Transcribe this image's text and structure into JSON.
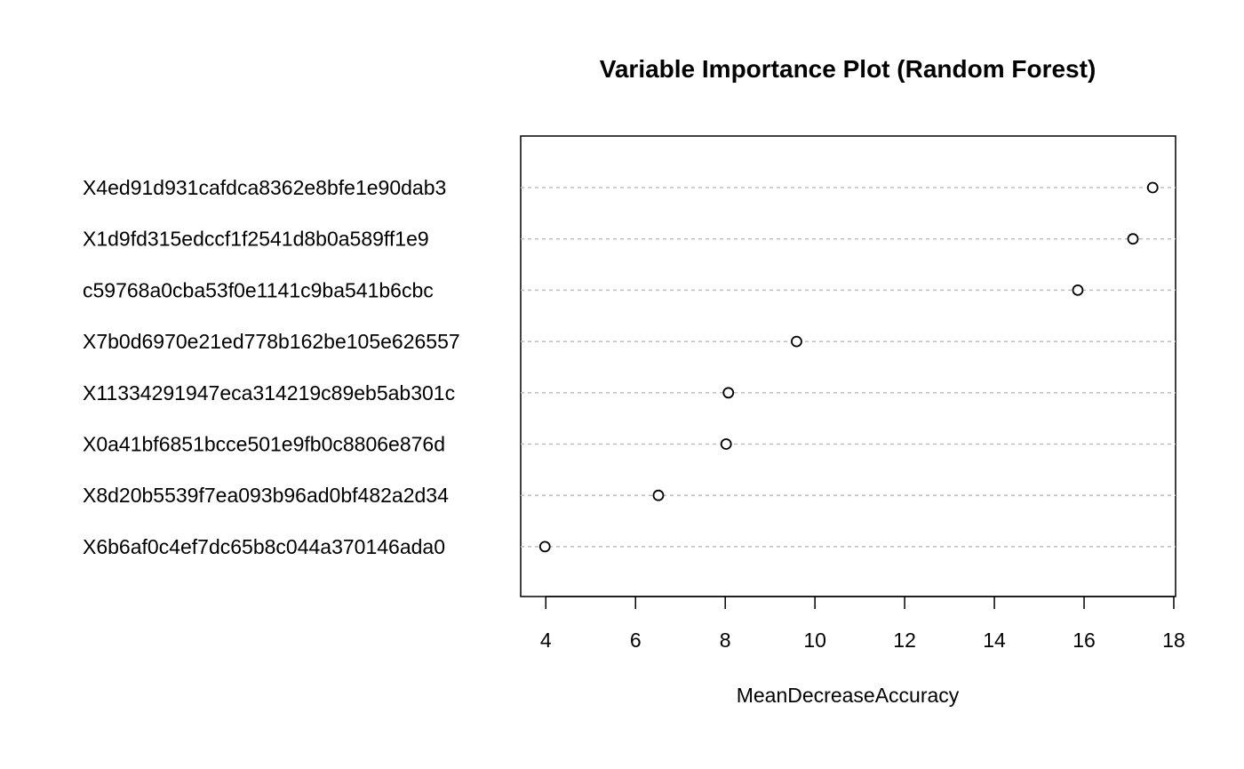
{
  "chart_data": {
    "type": "scatter",
    "title": "Variable Importance Plot (Random Forest)",
    "xlabel": "MeanDecreaseAccuracy",
    "ylabel": "",
    "xlim": [
      3.44,
      18.04
    ],
    "xticks": [
      4,
      6,
      8,
      10,
      12,
      14,
      16,
      18
    ],
    "grid": "dotted horizontal guide lines per variable",
    "categories": [
      "X4ed91d931cafdca8362e8bfe1e90dab3",
      "X1d9fd315edccf1f2541d8b0a589ff1e9",
      "c59768a0cba53f0e1141c9ba541b6cbc",
      "X7b0d6970e21ed778b162be105e626557",
      "X11334291947eca314219c89eb5ab301c",
      "X0a41bf6851bcce501e9fb0c8806e876d",
      "X8d20b5539f7ea093b96ad0bf482a2d34",
      "X6b6af0c4ef7dc65b8c044a370146ada0"
    ],
    "values": [
      17.53,
      17.09,
      15.86,
      9.59,
      8.07,
      8.02,
      6.51,
      3.98
    ],
    "colors": {
      "point_stroke": "#000000",
      "guide_line": "#bebebe",
      "axis": "#000000"
    }
  }
}
